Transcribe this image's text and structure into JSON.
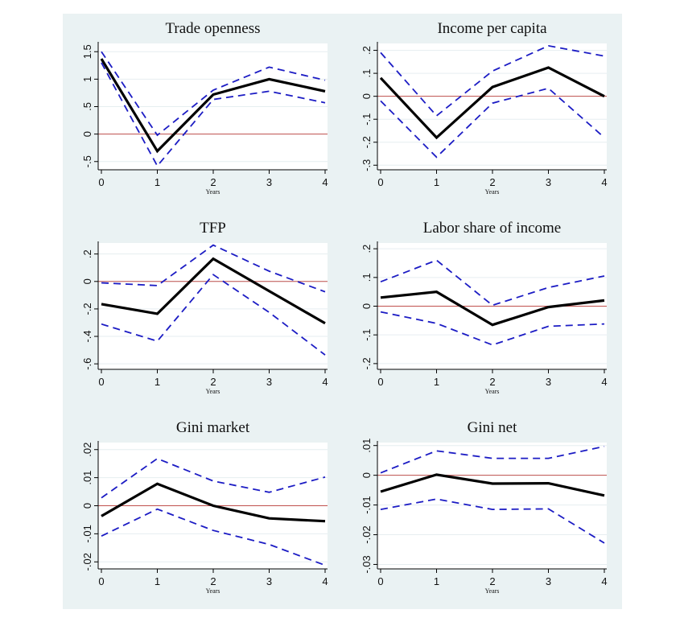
{
  "chart_data": [
    {
      "type": "line",
      "title": "Trade openness",
      "xlabel": "Years",
      "ylabel": "",
      "x": [
        0,
        1,
        2,
        3,
        4
      ],
      "xticks": [
        "0",
        "1",
        "2",
        "3",
        "4"
      ],
      "yticks": [
        -0.5,
        0,
        0.5,
        1,
        1.5
      ],
      "ytick_labels": [
        "-.5",
        "0",
        ".5",
        "1",
        "1.5"
      ],
      "ylim": [
        -0.65,
        1.65
      ],
      "series": [
        {
          "role": "estimate",
          "style": "solid",
          "values": [
            1.37,
            -0.31,
            0.72,
            1.0,
            0.78
          ]
        },
        {
          "role": "upper",
          "style": "dashed",
          "values": [
            1.5,
            -0.02,
            0.8,
            1.22,
            0.98
          ]
        },
        {
          "role": "lower",
          "style": "dashed",
          "values": [
            1.3,
            -0.58,
            0.63,
            0.78,
            0.57
          ]
        }
      ],
      "zero_line": true,
      "grid": true
    },
    {
      "type": "line",
      "title": "Income per capita",
      "xlabel": "Years",
      "ylabel": "",
      "x": [
        0,
        1,
        2,
        3,
        4
      ],
      "xticks": [
        "0",
        "1",
        "2",
        "3",
        "4"
      ],
      "yticks": [
        -0.3,
        -0.2,
        -0.1,
        0,
        0.1,
        0.2
      ],
      "ytick_labels": [
        "-.3",
        "-.2",
        "-.1",
        "0",
        ".1",
        ".2"
      ],
      "ylim": [
        -0.32,
        0.23
      ],
      "series": [
        {
          "role": "estimate",
          "style": "solid",
          "values": [
            0.08,
            -0.18,
            0.04,
            0.125,
            0.0
          ]
        },
        {
          "role": "upper",
          "style": "dashed",
          "values": [
            0.19,
            -0.085,
            0.11,
            0.22,
            0.175
          ]
        },
        {
          "role": "lower",
          "style": "dashed",
          "values": [
            -0.02,
            -0.265,
            -0.03,
            0.035,
            -0.18
          ]
        }
      ],
      "zero_line": true,
      "grid": true
    },
    {
      "type": "line",
      "title": "TFP",
      "xlabel": "Years",
      "ylabel": "",
      "x": [
        0,
        1,
        2,
        3,
        4
      ],
      "xticks": [
        "0",
        "1",
        "2",
        "3",
        "4"
      ],
      "yticks": [
        -0.6,
        -0.4,
        -0.2,
        0,
        0.2
      ],
      "ytick_labels": [
        "-.6",
        "-.4",
        "-.2",
        "0",
        ".2"
      ],
      "ylim": [
        -0.64,
        0.28
      ],
      "series": [
        {
          "role": "estimate",
          "style": "solid",
          "values": [
            -0.165,
            -0.235,
            0.165,
            -0.07,
            -0.305
          ]
        },
        {
          "role": "upper",
          "style": "dashed",
          "values": [
            -0.01,
            -0.03,
            0.265,
            0.075,
            -0.075
          ]
        },
        {
          "role": "lower",
          "style": "dashed",
          "values": [
            -0.31,
            -0.435,
            0.05,
            -0.225,
            -0.535
          ]
        }
      ],
      "zero_line": true,
      "grid": true
    },
    {
      "type": "line",
      "title": "Labor share of income",
      "xlabel": "Years",
      "ylabel": "",
      "x": [
        0,
        1,
        2,
        3,
        4
      ],
      "xticks": [
        "0",
        "1",
        "2",
        "3",
        "4"
      ],
      "yticks": [
        -0.2,
        -0.1,
        0,
        0.1,
        0.2
      ],
      "ytick_labels": [
        "-.2",
        "-.1",
        "0",
        ".1",
        ".2"
      ],
      "ylim": [
        -0.22,
        0.22
      ],
      "series": [
        {
          "role": "estimate",
          "style": "solid",
          "values": [
            0.03,
            0.05,
            -0.065,
            -0.003,
            0.02
          ]
        },
        {
          "role": "upper",
          "style": "dashed",
          "values": [
            0.085,
            0.16,
            0.003,
            0.065,
            0.105
          ]
        },
        {
          "role": "lower",
          "style": "dashed",
          "values": [
            -0.02,
            -0.06,
            -0.135,
            -0.07,
            -0.062
          ]
        }
      ],
      "zero_line": true,
      "grid": true
    },
    {
      "type": "line",
      "title": "Gini market",
      "xlabel": "Years",
      "ylabel": "",
      "x": [
        0,
        1,
        2,
        3,
        4
      ],
      "xticks": [
        "0",
        "1",
        "2",
        "3",
        "4"
      ],
      "yticks": [
        -0.02,
        -0.01,
        0,
        0.01,
        0.02
      ],
      "ytick_labels": [
        "-.02",
        "-.01",
        "0",
        ".01",
        ".02"
      ],
      "ylim": [
        -0.0225,
        0.0225
      ],
      "series": [
        {
          "role": "estimate",
          "style": "solid",
          "values": [
            -0.0037,
            0.0078,
            0.0,
            -0.0045,
            -0.0055
          ]
        },
        {
          "role": "upper",
          "style": "dashed",
          "values": [
            0.0028,
            0.0168,
            0.0088,
            0.0048,
            0.0102
          ]
        },
        {
          "role": "lower",
          "style": "dashed",
          "values": [
            -0.0108,
            -0.0012,
            -0.0088,
            -0.0138,
            -0.0212
          ]
        }
      ],
      "zero_line": true,
      "grid": true
    },
    {
      "type": "line",
      "title": "Gini net",
      "xlabel": "Years",
      "ylabel": "",
      "x": [
        0,
        1,
        2,
        3,
        4
      ],
      "xticks": [
        "0",
        "1",
        "2",
        "3",
        "4"
      ],
      "yticks": [
        -0.03,
        -0.02,
        -0.01,
        0,
        0.01
      ],
      "ytick_labels": [
        "-.03",
        "-.02",
        "-.01",
        "0",
        ".01"
      ],
      "ylim": [
        -0.0315,
        0.011
      ],
      "series": [
        {
          "role": "estimate",
          "style": "solid",
          "values": [
            -0.0055,
            0.0002,
            -0.0028,
            -0.0027,
            -0.0068
          ]
        },
        {
          "role": "upper",
          "style": "dashed",
          "values": [
            0.0008,
            0.0082,
            0.0057,
            0.0057,
            0.0097
          ]
        },
        {
          "role": "lower",
          "style": "dashed",
          "values": [
            -0.0115,
            -0.008,
            -0.0115,
            -0.0113,
            -0.0228
          ]
        }
      ],
      "zero_line": true,
      "grid": true
    }
  ],
  "colors": {
    "background": "#eaf2f3",
    "plot_area": "#ffffff",
    "grid": "#e6eef0",
    "estimate": "#000000",
    "interval": "#1c1cc4",
    "zero_line": "#c0504d"
  }
}
